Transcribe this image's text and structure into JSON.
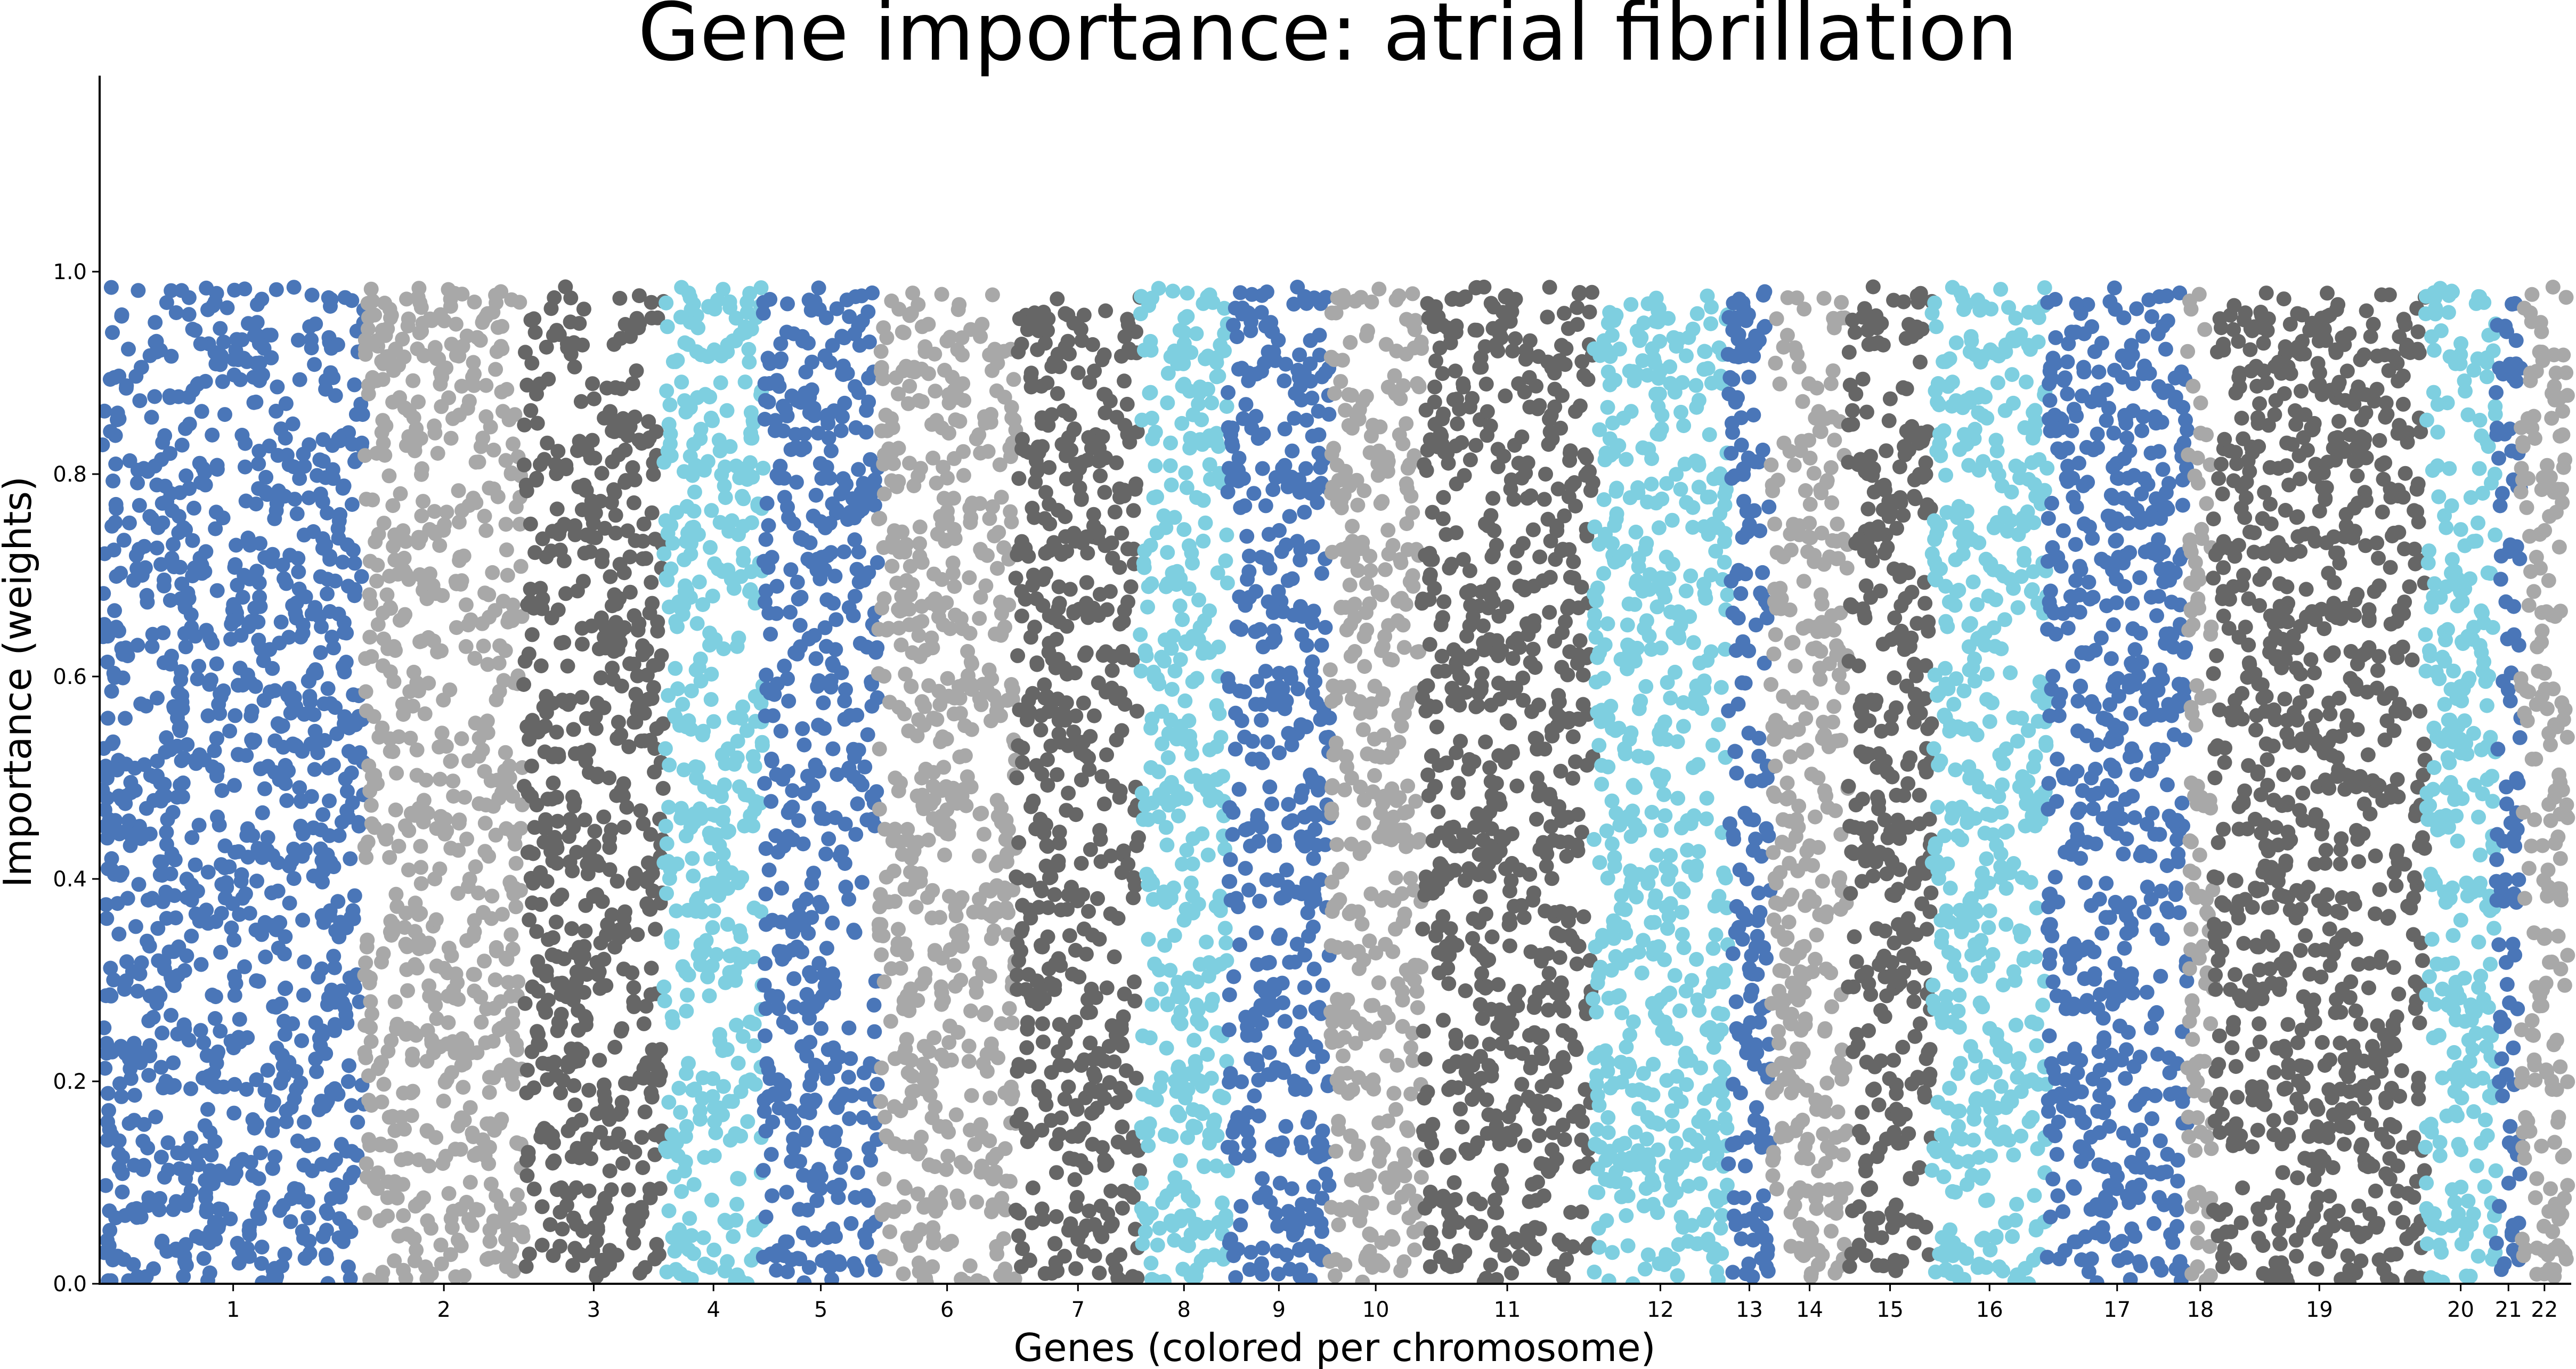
{
  "chart_data": {
    "type": "scatter",
    "title": "Gene importance: atrial fibrillation",
    "xlabel": "Genes (colored per chromosome)",
    "ylabel": "Importance (weights)",
    "ylim": [
      0,
      1.19
    ],
    "yticks": [
      "0.0",
      "0.2",
      "0.4",
      "0.6",
      "0.8",
      "1.0"
    ],
    "grid": false,
    "legend": "none",
    "palette": {
      "blue": "#4a76b8",
      "light_gray": "#a8a8a8",
      "dark_gray": "#666666",
      "cyan": "#7ecfe0"
    },
    "value_distribution": "approximately uniform between 0.0 and 1.0",
    "chromosomes": [
      {
        "label": "1",
        "color": "blue",
        "n_genes": 2000
      },
      {
        "label": "2",
        "color": "light_gray",
        "n_genes": 1220
      },
      {
        "label": "3",
        "color": "dark_gray",
        "n_genes": 1070
      },
      {
        "label": "4",
        "color": "cyan",
        "n_genes": 760
      },
      {
        "label": "5",
        "color": "blue",
        "n_genes": 880
      },
      {
        "label": "6",
        "color": "light_gray",
        "n_genes": 1050
      },
      {
        "label": "7",
        "color": "dark_gray",
        "n_genes": 950
      },
      {
        "label": "8",
        "color": "cyan",
        "n_genes": 670
      },
      {
        "label": "9",
        "color": "blue",
        "n_genes": 780
      },
      {
        "label": "10",
        "color": "light_gray",
        "n_genes": 700
      },
      {
        "label": "11",
        "color": "dark_gray",
        "n_genes": 1310
      },
      {
        "label": "12",
        "color": "cyan",
        "n_genes": 1030
      },
      {
        "label": "13",
        "color": "blue",
        "n_genes": 330
      },
      {
        "label": "14",
        "color": "light_gray",
        "n_genes": 590
      },
      {
        "label": "15",
        "color": "dark_gray",
        "n_genes": 640
      },
      {
        "label": "16",
        "color": "cyan",
        "n_genes": 880
      },
      {
        "label": "17",
        "color": "blue",
        "n_genes": 1070
      },
      {
        "label": "18",
        "color": "light_gray",
        "n_genes": 200
      },
      {
        "label": "19",
        "color": "dark_gray",
        "n_genes": 1620
      },
      {
        "label": "20",
        "color": "cyan",
        "n_genes": 540
      },
      {
        "label": "21",
        "color": "blue",
        "n_genes": 190
      },
      {
        "label": "22",
        "color": "light_gray",
        "n_genes": 360
      }
    ]
  }
}
